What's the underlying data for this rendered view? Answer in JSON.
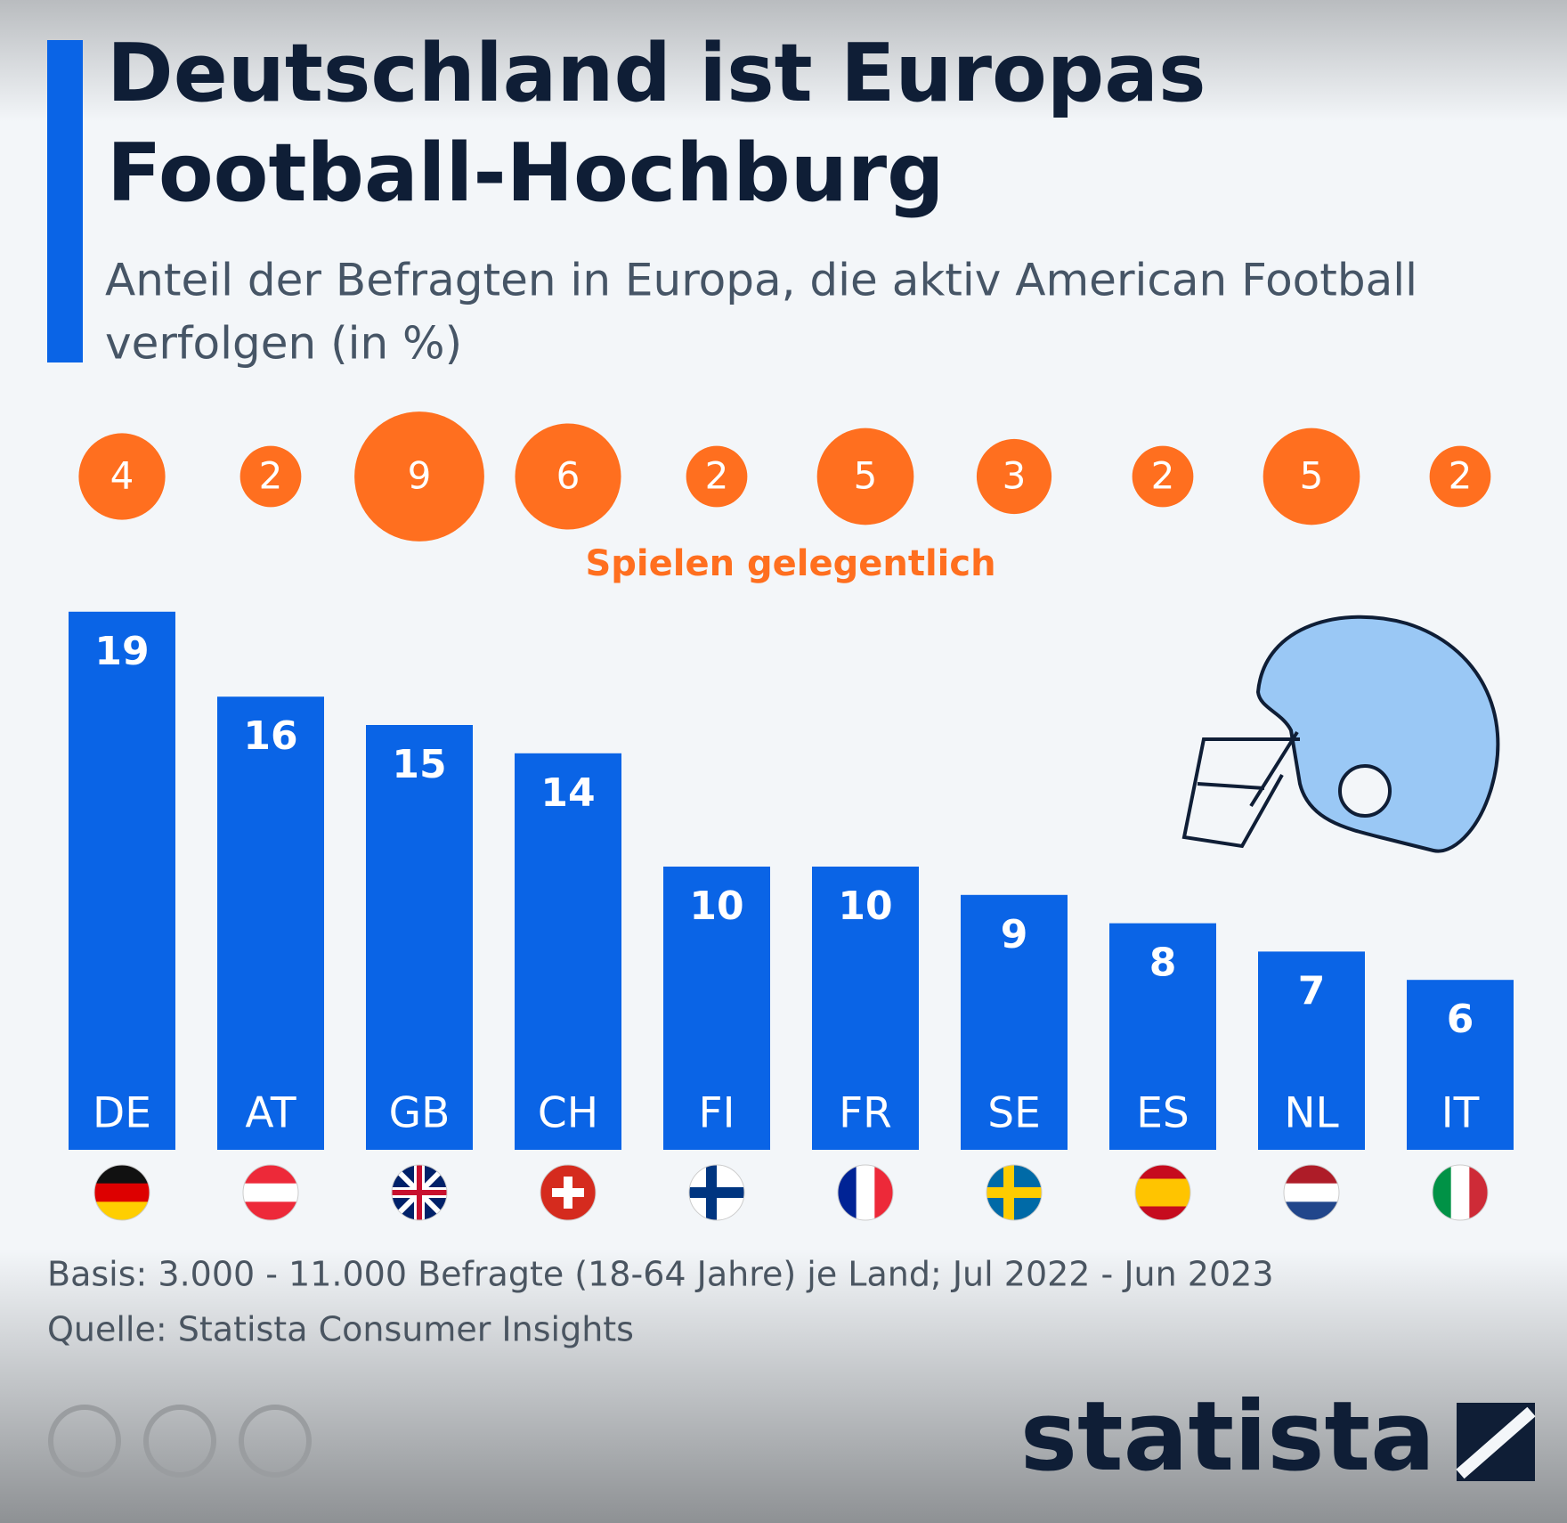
{
  "chart_data": {
    "type": "bar",
    "title": [
      "Deutschland ist Europas",
      "Football-Hochburg"
    ],
    "subtitle": [
      "Anteil der Befragten in Europa, die aktiv American Football",
      "verfolgen (in %)"
    ],
    "categories": [
      "DE",
      "AT",
      "GB",
      "CH",
      "FI",
      "FR",
      "SE",
      "ES",
      "NL",
      "IT"
    ],
    "values": [
      19,
      16,
      15,
      14,
      10,
      10,
      9,
      8,
      7,
      6
    ],
    "color": "#0a64e6",
    "bubbles": {
      "name": "Spielen gelegentlich",
      "values": [
        4,
        2,
        9,
        6,
        2,
        5,
        3,
        2,
        5,
        2
      ],
      "color": "#ff6f1f"
    },
    "notes": [
      "Basis: 3.000 - 11.000 Befragte (18-64 Jahre) je Land; Jul 2022 - Jun 2023",
      "Quelle: Statista Consumer Insights"
    ],
    "brand": "statista"
  }
}
